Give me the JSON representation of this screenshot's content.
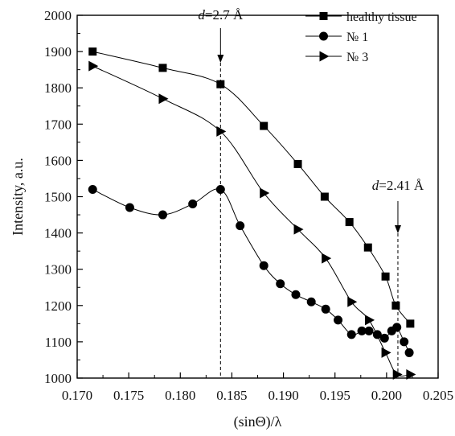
{
  "chart_data": {
    "type": "line",
    "xlabel": "(sinΘ)/λ",
    "ylabel": "Intensity, a.u.",
    "xlim": [
      0.17,
      0.205
    ],
    "ylim": [
      1000,
      2000
    ],
    "xticks": [
      "0.170",
      "0.175",
      "0.180",
      "0.185",
      "0.190",
      "0.195",
      "0.200",
      "0.205"
    ],
    "yticks": [
      "1000",
      "1100",
      "1200",
      "1300",
      "1400",
      "1500",
      "1600",
      "1700",
      "1800",
      "1900",
      "2000"
    ],
    "grid": false,
    "legend_position": "top-right",
    "series": [
      {
        "name": "healthy tissue",
        "marker": "square",
        "x": [
          0.1715,
          0.1783,
          0.1839,
          0.1881,
          0.1914,
          0.194,
          0.1964,
          0.1982,
          0.1999,
          0.2009,
          0.2023
        ],
        "y": [
          1900,
          1855,
          1810,
          1695,
          1590,
          1500,
          1430,
          1360,
          1280,
          1200,
          1150
        ]
      },
      {
        "name": "№ 1",
        "marker": "circle",
        "x": [
          0.1715,
          0.1751,
          0.1783,
          0.1812,
          0.1839,
          0.1858,
          0.1881,
          0.1897,
          0.1912,
          0.1927,
          0.1941,
          0.1953,
          0.1966,
          0.1976,
          0.1983,
          0.1991,
          0.1998,
          0.2005,
          0.201,
          0.2017,
          0.2022
        ],
        "y": [
          1520,
          1470,
          1450,
          1480,
          1520,
          1420,
          1310,
          1260,
          1230,
          1210,
          1190,
          1160,
          1120,
          1130,
          1130,
          1120,
          1110,
          1130,
          1140,
          1100,
          1070
        ]
      },
      {
        "name": "№ 3",
        "marker": "triangle-right",
        "x": [
          0.1715,
          0.1783,
          0.1839,
          0.1881,
          0.1914,
          0.1941,
          0.1966,
          0.1983,
          0.1999,
          0.201,
          0.2023
        ],
        "y": [
          1860,
          1770,
          1680,
          1510,
          1410,
          1330,
          1210,
          1160,
          1070,
          1010,
          1010
        ]
      }
    ],
    "annotations": [
      {
        "prefix": "d",
        "text": "=2.7 Å",
        "x": 0.1839
      },
      {
        "prefix": "d",
        "text": "=2.41 Å",
        "x": 0.2011
      }
    ]
  }
}
